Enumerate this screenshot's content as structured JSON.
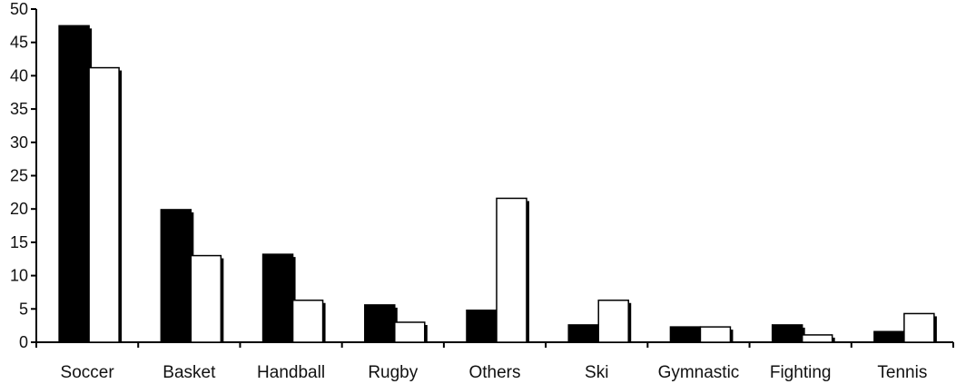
{
  "chart_data": {
    "type": "bar",
    "title": "",
    "xlabel": "",
    "ylabel": "",
    "ylim": [
      0,
      50
    ],
    "yticks": [
      0,
      5,
      10,
      15,
      20,
      25,
      30,
      35,
      40,
      45,
      50
    ],
    "categories": [
      "Soccer",
      "Basket",
      "Handball",
      "Rugby",
      "Others",
      "Ski",
      "Gymnastic",
      "Fighting",
      "Tennis"
    ],
    "grid": false,
    "legend": "none",
    "series": [
      {
        "values": [
          47.5,
          19.9,
          13.2,
          5.6,
          4.8,
          2.6,
          2.3,
          2.6,
          1.6
        ],
        "color": "#000000"
      },
      {
        "values": [
          41.2,
          13.0,
          6.3,
          3.0,
          21.6,
          6.3,
          2.3,
          1.1,
          4.3
        ],
        "color": "#ffffff"
      }
    ]
  }
}
